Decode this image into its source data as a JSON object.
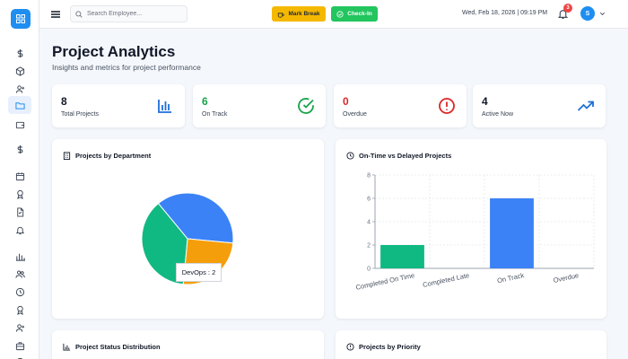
{
  "header": {
    "search_placeholder": "Search Employee...",
    "mark_break_label": "Mark Break",
    "check_in_label": "Check-In",
    "datetime": "Wed, Feb 18, 2026 | 09:19 PM",
    "notification_count": "3",
    "avatar_initial": "S"
  },
  "page": {
    "title": "Project Analytics",
    "subtitle": "Insights and metrics for project performance"
  },
  "stats": [
    {
      "value": "8",
      "label": "Total Projects",
      "color": "#111827",
      "icon": "bar-chart-icon"
    },
    {
      "value": "6",
      "label": "On Track",
      "color": "#16a34a",
      "icon": "check-circle-icon"
    },
    {
      "value": "0",
      "label": "Overdue",
      "color": "#dc2626",
      "icon": "alert-circle-icon"
    },
    {
      "value": "4",
      "label": "Active Now",
      "color": "#111827",
      "icon": "trending-up-icon"
    }
  ],
  "cards": {
    "dept_title": "Projects by Department",
    "ontime_title": "On-Time vs Delayed Projects",
    "status_title": "Project Status Distribution",
    "priority_title": "Projects by Priority"
  },
  "tooltip_text": "DevOps : 2",
  "colors": {
    "accent": "#1f8ef1",
    "blue": "#3b82f6",
    "green": "#10b981",
    "orange": "#f59e0b"
  },
  "chart_data": [
    {
      "type": "pie",
      "title": "Projects by Department",
      "slices": [
        {
          "label": "",
          "value": 3,
          "color": "#3b82f6"
        },
        {
          "label": "DevOps",
          "value": 2,
          "color": "#f59e0b"
        },
        {
          "label": "",
          "value": 3,
          "color": "#10b981"
        }
      ]
    },
    {
      "type": "bar",
      "title": "On-Time vs Delayed Projects",
      "categories": [
        "Completed On Time",
        "Completed Late",
        "On Track",
        "Overdue"
      ],
      "values": [
        2,
        0,
        6,
        0
      ],
      "colors": [
        "#10b981",
        "#10b981",
        "#3b82f6",
        "#ef4444"
      ],
      "ylim": [
        0,
        8
      ],
      "yticks": [
        0,
        2,
        4,
        6,
        8
      ],
      "grid": true
    }
  ]
}
